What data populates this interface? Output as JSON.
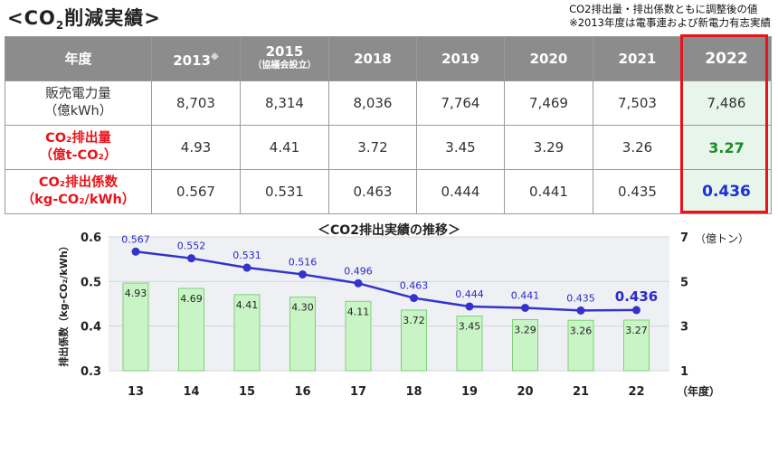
{
  "title": {
    "prefix": "<CO",
    "sub": "2",
    "suffix": "削減実績>"
  },
  "notes": [
    "CO2排出量・排出係数ともに調整後の値",
    "※2013年度は電事連および新電力有志実績"
  ],
  "table": {
    "header_label": "年度",
    "years": [
      {
        "label": "2013",
        "mark": "※",
        "sub": ""
      },
      {
        "label": "2015",
        "mark": "",
        "sub": "（協議会設立）"
      },
      {
        "label": "2018",
        "mark": "",
        "sub": ""
      },
      {
        "label": "2019",
        "mark": "",
        "sub": ""
      },
      {
        "label": "2020",
        "mark": "",
        "sub": ""
      },
      {
        "label": "2021",
        "mark": "",
        "sub": ""
      },
      {
        "label": "2022",
        "mark": "",
        "sub": ""
      }
    ],
    "rows": [
      {
        "label1": "販売電力量",
        "label2": "（億kWh）",
        "values": [
          "8,703",
          "8,314",
          "8,036",
          "7,764",
          "7,469",
          "7,503",
          "7,486"
        ]
      },
      {
        "label1": "CO₂排出量",
        "label2": "（億t-CO₂）",
        "values": [
          "4.93",
          "4.41",
          "3.72",
          "3.45",
          "3.29",
          "3.26",
          "3.27"
        ]
      },
      {
        "label1": "CO₂排出係数",
        "label2": "（kg-CO₂/kWh）",
        "values": [
          "0.567",
          "0.531",
          "0.463",
          "0.444",
          "0.441",
          "0.435",
          "0.436"
        ]
      }
    ]
  },
  "chart_data": {
    "type": "bar+line",
    "title": "＜CO2排出実績の推移＞",
    "categories": [
      "13",
      "14",
      "15",
      "16",
      "17",
      "18",
      "19",
      "20",
      "21",
      "22"
    ],
    "x_unit": "（年度）",
    "series": [
      {
        "name": "CO₂排出量",
        "type": "bar",
        "axis": "right",
        "values": [
          4.93,
          4.69,
          4.41,
          4.3,
          4.11,
          3.72,
          3.45,
          3.29,
          3.26,
          3.27
        ],
        "labels": [
          "4.93",
          "4.69",
          "4.41",
          "4.30",
          "4.11",
          "3.72",
          "3.45",
          "3.29",
          "3.26",
          "3.27"
        ],
        "color": "#c9f5c6"
      },
      {
        "name": "CO₂排出係数",
        "type": "line",
        "axis": "left",
        "values": [
          0.567,
          0.552,
          0.531,
          0.516,
          0.496,
          0.463,
          0.444,
          0.441,
          0.435,
          0.436
        ],
        "labels": [
          "0.567",
          "0.552",
          "0.531",
          "0.516",
          "0.496",
          "0.463",
          "0.444",
          "0.441",
          "0.435",
          "0.436"
        ],
        "color": "#3333cc"
      }
    ],
    "left_axis": {
      "label": "排出係数（kg-CO₂/kWh）",
      "min": 0.3,
      "max": 0.6,
      "ticks": [
        "0.3",
        "0.4",
        "0.5",
        "0.6"
      ]
    },
    "right_axis": {
      "unit": "（億トン）",
      "min": 1,
      "max": 7,
      "ticks": [
        "1",
        "3",
        "5",
        "7"
      ]
    }
  }
}
